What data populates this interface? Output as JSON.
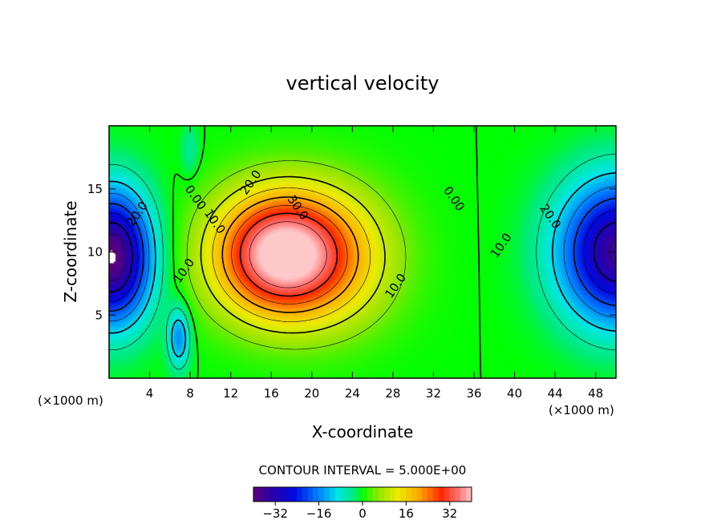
{
  "chart_data": {
    "type": "heatmap",
    "title": "vertical velocity",
    "xlabel": "X-coordinate",
    "ylabel": "Z-coordinate",
    "x_unit_left": "(×1000 m)",
    "x_unit_right": "(×1000 m)",
    "xlim": [
      0,
      50
    ],
    "ylim": [
      0,
      20
    ],
    "x_ticks": [
      4,
      8,
      12,
      16,
      20,
      24,
      28,
      32,
      36,
      40,
      44,
      48
    ],
    "y_ticks": [
      5,
      10,
      15
    ],
    "contour_interval_text": "CONTOUR INTERVAL = 5.000E+00",
    "contour_interval": 5.0,
    "colorbar": {
      "range": [
        -40,
        40
      ],
      "ticks": [
        -32,
        -16,
        0,
        16,
        32
      ]
    },
    "field_features": [
      {
        "kind": "updraft maximum",
        "x": 16.5,
        "z": 9.5,
        "value": 38
      },
      {
        "kind": "downdraft minimum",
        "x": 1.0,
        "z": 9.0,
        "value": -38
      },
      {
        "kind": "downdraft minimum",
        "x": 49.5,
        "z": 10.0,
        "value": -35
      },
      {
        "kind": "weak downdraft",
        "x": 7.0,
        "z": 3.0,
        "value": -12
      }
    ],
    "contour_labels": [
      {
        "text": "20.0",
        "x": 2.8,
        "z": 13.0
      },
      {
        "text": "0.00",
        "x": 8.5,
        "z": 14.3
      },
      {
        "text": "10.0",
        "x": 7.4,
        "z": 8.5
      },
      {
        "text": "10.0",
        "x": 10.4,
        "z": 12.4
      },
      {
        "text": "20.0",
        "x": 14.0,
        "z": 15.5
      },
      {
        "text": "30.0",
        "x": 18.6,
        "z": 13.5
      },
      {
        "text": "10.0",
        "x": 28.3,
        "z": 7.3
      },
      {
        "text": "0.00",
        "x": 34.0,
        "z": 14.2
      },
      {
        "text": "10.0",
        "x": 38.7,
        "z": 10.5
      },
      {
        "text": "20.0",
        "x": 43.5,
        "z": 12.8
      }
    ]
  }
}
